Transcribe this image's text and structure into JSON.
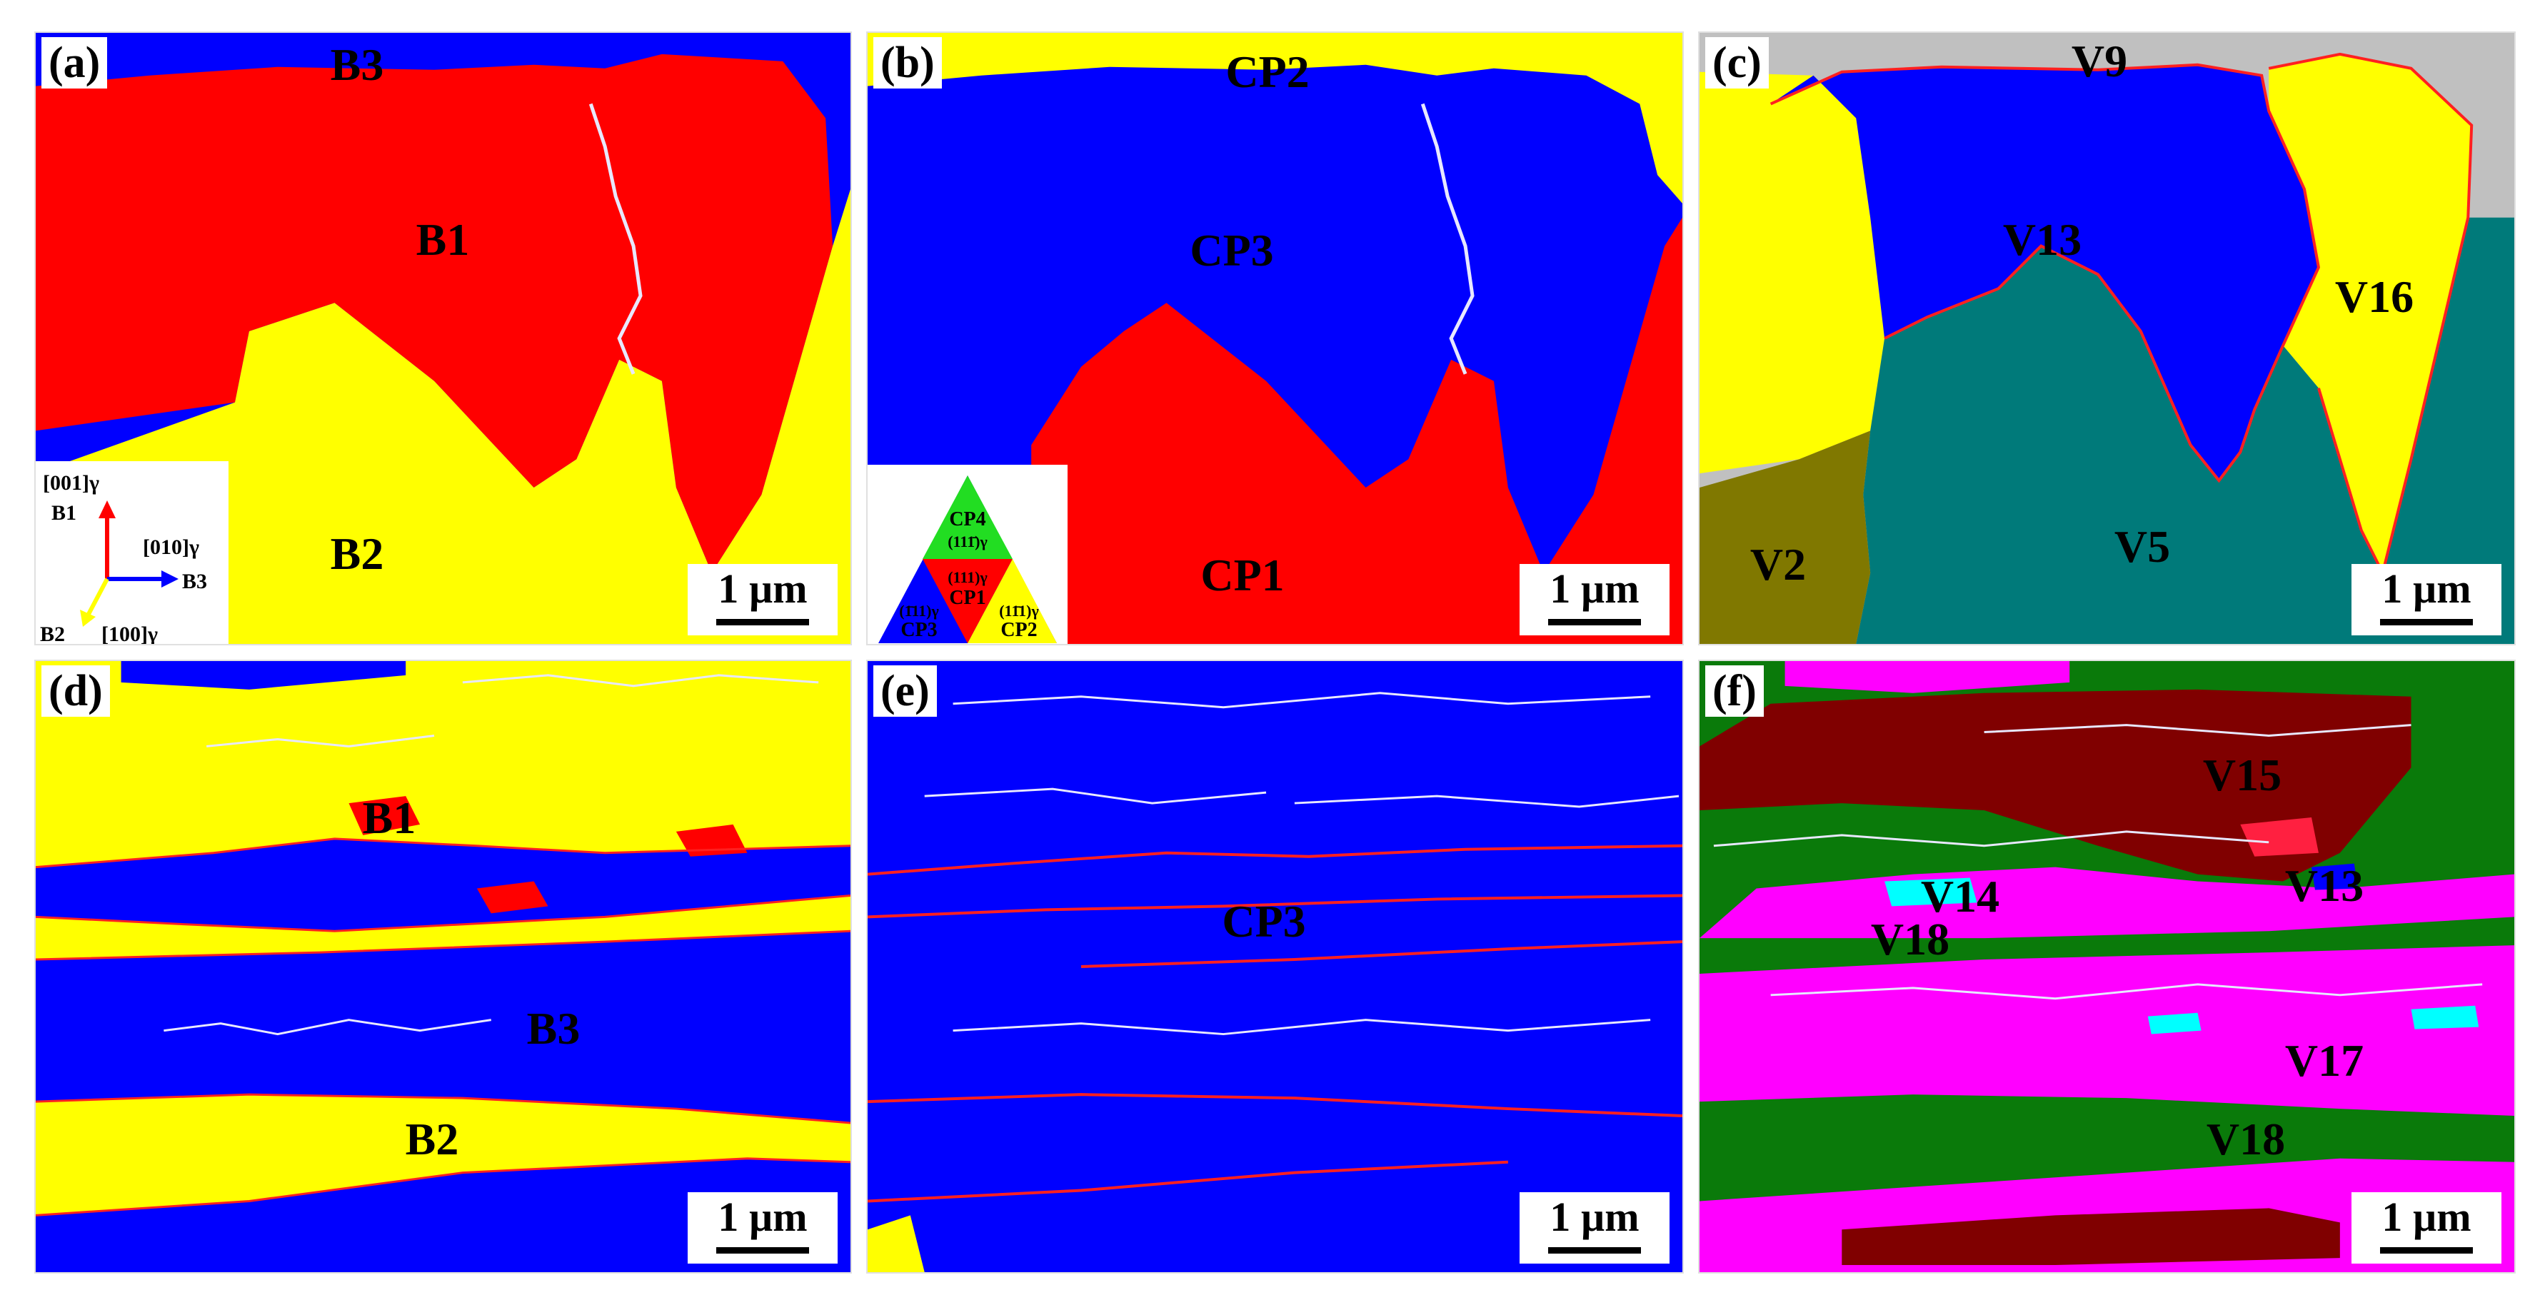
{
  "panels": [
    {
      "id": "a",
      "tag": "(a)",
      "labels": [
        "B3",
        "B1",
        "B2"
      ],
      "scale_bar": "1 µm",
      "axis_legend": {
        "up": "[001]γ",
        "up_var": "B1",
        "right": "[010]γ",
        "right_var": "B3",
        "diag": "[100]γ",
        "diag_var": "B2"
      }
    },
    {
      "id": "b",
      "tag": "(b)",
      "labels": [
        "CP2",
        "CP3",
        "CP1"
      ],
      "scale_bar": "1 µm",
      "triangle_legend": {
        "top": "CP4",
        "top_plane": "(111̄)γ",
        "center": "CP1",
        "center_plane": "(111)γ",
        "left": "CP3",
        "left_plane": "(1̄11)γ",
        "right": "CP2",
        "right_plane": "(11̄1)γ"
      }
    },
    {
      "id": "c",
      "tag": "(c)",
      "labels": [
        "V9",
        "V13",
        "V16",
        "V5",
        "V2"
      ],
      "scale_bar": "1 µm"
    },
    {
      "id": "d",
      "tag": "(d)",
      "labels": [
        "B1",
        "B3",
        "B2"
      ],
      "scale_bar": "1 µm"
    },
    {
      "id": "e",
      "tag": "(e)",
      "labels": [
        "CP3"
      ],
      "scale_bar": "1 µm"
    },
    {
      "id": "f",
      "tag": "(f)",
      "labels": [
        "V15",
        "V14",
        "V13",
        "V18",
        "V17",
        "V18"
      ],
      "scale_bar": "1 µm"
    }
  ],
  "colors": {
    "red": "#ff0000",
    "blue": "#0000ff",
    "yellow": "#ffff00",
    "grey": "#c0c0c0",
    "teal": "#007a7a",
    "olive": "#807800",
    "green": "#0a7a0a",
    "darkred": "#800000",
    "magenta": "#ff00ff",
    "cyan": "#00ffff",
    "green_legend": "#22dd22"
  }
}
